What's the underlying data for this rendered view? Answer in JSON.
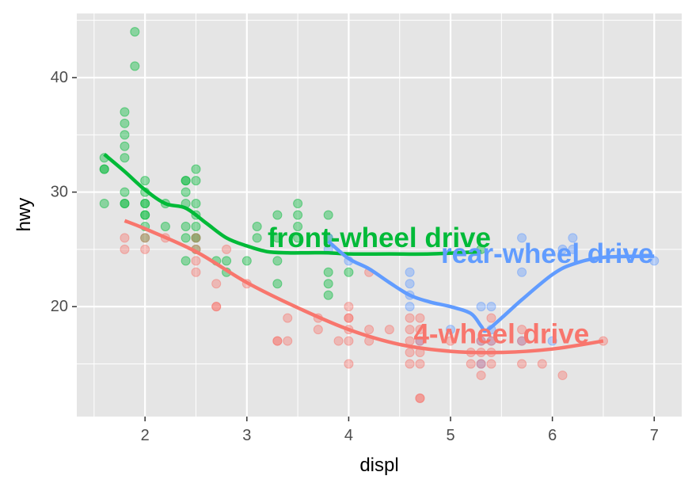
{
  "chart_data": {
    "type": "scatter",
    "title": "",
    "xlabel": "displ",
    "ylabel": "hwy",
    "xlim": [
      1.33,
      7.27
    ],
    "ylim": [
      10.4,
      45.6
    ],
    "x_ticks": [
      2,
      3,
      4,
      5,
      6,
      7
    ],
    "x_tick_labels": [
      "2",
      "3",
      "4",
      "5",
      "6",
      "7"
    ],
    "y_ticks": [
      20,
      30,
      40
    ],
    "y_tick_labels": [
      "20",
      "30",
      "40"
    ],
    "grid": true,
    "legend": "none",
    "background": "#e5e5e5",
    "series": [
      {
        "name": "front-wheel drive",
        "color": "#00ba38",
        "points": [
          [
            1.6,
            33
          ],
          [
            1.6,
            32
          ],
          [
            1.6,
            32
          ],
          [
            1.6,
            29
          ],
          [
            1.8,
            37
          ],
          [
            1.8,
            36
          ],
          [
            1.8,
            35
          ],
          [
            1.8,
            34
          ],
          [
            1.8,
            33
          ],
          [
            1.8,
            30
          ],
          [
            1.8,
            29
          ],
          [
            1.8,
            29
          ],
          [
            1.9,
            44
          ],
          [
            1.9,
            41
          ],
          [
            2.0,
            31
          ],
          [
            2.0,
            30
          ],
          [
            2.0,
            29
          ],
          [
            2.0,
            29
          ],
          [
            2.0,
            28
          ],
          [
            2.0,
            28
          ],
          [
            2.0,
            27
          ],
          [
            2.0,
            26
          ],
          [
            2.2,
            29
          ],
          [
            2.2,
            27
          ],
          [
            2.4,
            31
          ],
          [
            2.4,
            31
          ],
          [
            2.4,
            30
          ],
          [
            2.4,
            29
          ],
          [
            2.4,
            27
          ],
          [
            2.4,
            26
          ],
          [
            2.4,
            24
          ],
          [
            2.5,
            32
          ],
          [
            2.5,
            31
          ],
          [
            2.5,
            29
          ],
          [
            2.5,
            28
          ],
          [
            2.5,
            27
          ],
          [
            2.5,
            26
          ],
          [
            2.5,
            26
          ],
          [
            2.5,
            25
          ],
          [
            2.7,
            24
          ],
          [
            2.8,
            24
          ],
          [
            2.8,
            23
          ],
          [
            3.0,
            24
          ],
          [
            3.1,
            27
          ],
          [
            3.1,
            26
          ],
          [
            3.3,
            28
          ],
          [
            3.3,
            26
          ],
          [
            3.3,
            24
          ],
          [
            3.3,
            22
          ],
          [
            3.5,
            29
          ],
          [
            3.5,
            28
          ],
          [
            3.5,
            27
          ],
          [
            3.5,
            26
          ],
          [
            3.8,
            28
          ],
          [
            3.8,
            26
          ],
          [
            3.8,
            23
          ],
          [
            3.8,
            22
          ],
          [
            3.8,
            21
          ],
          [
            4.0,
            23
          ],
          [
            5.3,
            25
          ]
        ],
        "smooth": [
          [
            1.6,
            33.3
          ],
          [
            1.8,
            31.8
          ],
          [
            2.0,
            30.2
          ],
          [
            2.2,
            29.0
          ],
          [
            2.4,
            28.6
          ],
          [
            2.6,
            27.3
          ],
          [
            2.8,
            26.0
          ],
          [
            3.0,
            25.3
          ],
          [
            3.2,
            24.8
          ],
          [
            3.4,
            24.7
          ],
          [
            3.6,
            24.7
          ],
          [
            3.8,
            24.7
          ],
          [
            4.0,
            24.6
          ],
          [
            4.4,
            24.6
          ],
          [
            4.8,
            24.6
          ],
          [
            5.3,
            24.8
          ]
        ],
        "label": {
          "x": 4.3,
          "y": 26.0
        }
      },
      {
        "name": "rear-wheel drive",
        "color": "#619cff",
        "points": [
          [
            3.8,
            26
          ],
          [
            3.8,
            25
          ],
          [
            4.0,
            24
          ],
          [
            4.6,
            23
          ],
          [
            4.6,
            22
          ],
          [
            4.6,
            21
          ],
          [
            4.6,
            20
          ],
          [
            4.7,
            17
          ],
          [
            5.0,
            18
          ],
          [
            5.3,
            20
          ],
          [
            5.3,
            17
          ],
          [
            5.3,
            15
          ],
          [
            5.4,
            20
          ],
          [
            5.4,
            18
          ],
          [
            5.4,
            17
          ],
          [
            5.7,
            26
          ],
          [
            5.7,
            23
          ],
          [
            5.7,
            17
          ],
          [
            6.0,
            17
          ],
          [
            6.1,
            25
          ],
          [
            6.2,
            26
          ],
          [
            6.2,
            25
          ],
          [
            7.0,
            24
          ]
        ],
        "smooth": [
          [
            3.8,
            25.7
          ],
          [
            4.0,
            24.2
          ],
          [
            4.2,
            23.3
          ],
          [
            4.4,
            22.1
          ],
          [
            4.6,
            21.0
          ],
          [
            4.8,
            20.4
          ],
          [
            5.0,
            20.0
          ],
          [
            5.2,
            19.4
          ],
          [
            5.3,
            18.3
          ],
          [
            5.35,
            17.9
          ],
          [
            5.5,
            19.0
          ],
          [
            5.7,
            20.6
          ],
          [
            6.0,
            22.8
          ],
          [
            6.2,
            23.7
          ],
          [
            6.5,
            24.3
          ],
          [
            7.0,
            24.4
          ]
        ],
        "label": {
          "x": 5.95,
          "y": 24.6
        }
      },
      {
        "name": "4-wheel drive",
        "color": "#f8766d",
        "points": [
          [
            1.8,
            26
          ],
          [
            1.8,
            25
          ],
          [
            2.0,
            26
          ],
          [
            2.0,
            25
          ],
          [
            2.2,
            26
          ],
          [
            2.5,
            26
          ],
          [
            2.5,
            25
          ],
          [
            2.5,
            24
          ],
          [
            2.5,
            23
          ],
          [
            2.7,
            22
          ],
          [
            2.7,
            20
          ],
          [
            2.7,
            20
          ],
          [
            2.8,
            25
          ],
          [
            3.0,
            22
          ],
          [
            3.3,
            17
          ],
          [
            3.3,
            17
          ],
          [
            3.4,
            19
          ],
          [
            3.4,
            17
          ],
          [
            3.7,
            19
          ],
          [
            3.7,
            18
          ],
          [
            3.9,
            17
          ],
          [
            4.0,
            20
          ],
          [
            4.0,
            19
          ],
          [
            4.0,
            19
          ],
          [
            4.0,
            18
          ],
          [
            4.0,
            17
          ],
          [
            4.0,
            15
          ],
          [
            4.2,
            23
          ],
          [
            4.2,
            18
          ],
          [
            4.2,
            17
          ],
          [
            4.4,
            18
          ],
          [
            4.6,
            19
          ],
          [
            4.6,
            18
          ],
          [
            4.6,
            17
          ],
          [
            4.6,
            16
          ],
          [
            4.6,
            15
          ],
          [
            4.7,
            19
          ],
          [
            4.7,
            18
          ],
          [
            4.7,
            17
          ],
          [
            4.7,
            16
          ],
          [
            4.7,
            15
          ],
          [
            4.7,
            12
          ],
          [
            4.7,
            12
          ],
          [
            5.0,
            17
          ],
          [
            5.2,
            16
          ],
          [
            5.2,
            15
          ],
          [
            5.3,
            17
          ],
          [
            5.3,
            16
          ],
          [
            5.3,
            15
          ],
          [
            5.3,
            14
          ],
          [
            5.4,
            17
          ],
          [
            5.4,
            16
          ],
          [
            5.4,
            15
          ],
          [
            5.4,
            19
          ],
          [
            5.7,
            18
          ],
          [
            5.7,
            17
          ],
          [
            5.7,
            15
          ],
          [
            5.9,
            15
          ],
          [
            6.1,
            14
          ],
          [
            6.5,
            17
          ]
        ],
        "smooth": [
          [
            1.8,
            27.5
          ],
          [
            2.0,
            26.8
          ],
          [
            2.5,
            24.8
          ],
          [
            3.0,
            22.1
          ],
          [
            3.5,
            19.9
          ],
          [
            4.0,
            18.0
          ],
          [
            4.5,
            16.7
          ],
          [
            5.0,
            16.1
          ],
          [
            5.5,
            16.0
          ],
          [
            6.0,
            16.3
          ],
          [
            6.5,
            17.0
          ]
        ],
        "label": {
          "x": 5.5,
          "y": 17.6
        }
      }
    ]
  }
}
